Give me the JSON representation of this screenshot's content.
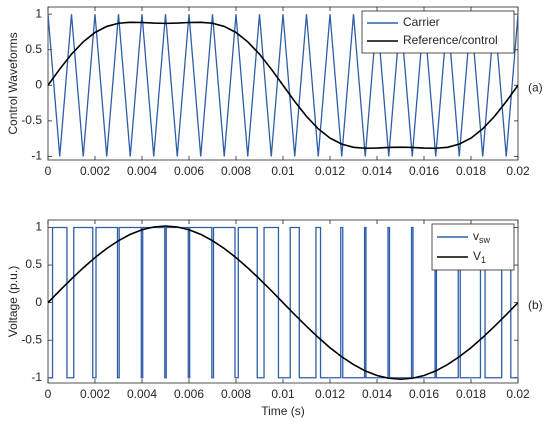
{
  "chart_data": [
    {
      "type": "line",
      "ylabel": "Control Waveforms",
      "annotation": "(a)",
      "x": [
        0,
        0.0005,
        0.001,
        0.0015,
        0.002,
        0.0025,
        0.003,
        0.0035,
        0.004,
        0.0045,
        0.005,
        0.0055,
        0.006,
        0.0065,
        0.007,
        0.0075,
        0.008,
        0.0085,
        0.009,
        0.0095,
        0.01,
        0.0105,
        0.011,
        0.0115,
        0.012,
        0.0125,
        0.013,
        0.0135,
        0.014,
        0.0145,
        0.015,
        0.0155,
        0.016,
        0.0165,
        0.017,
        0.0175,
        0.018,
        0.0185,
        0.019,
        0.0195,
        0.02
      ],
      "series": [
        {
          "name": "Carrier",
          "color": "#2f5ea8",
          "values": [
            1,
            -1,
            1,
            -1,
            1,
            -1,
            1,
            -1,
            1,
            -1,
            1,
            -1,
            1,
            -1,
            1,
            -1,
            1,
            -1,
            1,
            -1,
            1,
            -1,
            1,
            -1,
            1,
            -1,
            1,
            -1,
            1,
            -1,
            1,
            -1,
            1,
            -1,
            1,
            -1,
            1,
            -1,
            1,
            -1,
            1
          ]
        },
        {
          "name": "Reference/control",
          "color": "#000000",
          "values": [
            0,
            0.228,
            0.437,
            0.611,
            0.742,
            0.827,
            0.872,
            0.885,
            0.882,
            0.874,
            0.87,
            0.874,
            0.882,
            0.885,
            0.872,
            0.827,
            0.742,
            0.611,
            0.437,
            0.228,
            0,
            -0.228,
            -0.437,
            -0.611,
            -0.742,
            -0.827,
            -0.872,
            -0.885,
            -0.882,
            -0.874,
            -0.87,
            -0.874,
            -0.882,
            -0.885,
            -0.872,
            -0.827,
            -0.742,
            -0.611,
            -0.437,
            -0.228,
            0
          ]
        }
      ],
      "xlim": [
        0,
        0.02
      ],
      "xticks": [
        0,
        0.002,
        0.004,
        0.006,
        0.008,
        0.01,
        0.012,
        0.014,
        0.016,
        0.018,
        0.02
      ],
      "ylim": [
        -1.05,
        1.1
      ],
      "yticks": [
        -1,
        -0.5,
        0,
        0.5,
        1
      ],
      "legend": "upper right"
    },
    {
      "type": "line",
      "ylabel": "Voltage (p.u.)",
      "xlabel": "Time (s)",
      "annotation": "(b)",
      "x": [
        0,
        0.0005,
        0.001,
        0.0015,
        0.002,
        0.0025,
        0.003,
        0.0035,
        0.004,
        0.0045,
        0.005,
        0.0055,
        0.006,
        0.0065,
        0.007,
        0.0075,
        0.008,
        0.0085,
        0.009,
        0.0095,
        0.01,
        0.0105,
        0.011,
        0.0115,
        0.012,
        0.0125,
        0.013,
        0.0135,
        0.014,
        0.0145,
        0.015,
        0.0155,
        0.016,
        0.0165,
        0.017,
        0.0175,
        0.018,
        0.0185,
        0.019,
        0.0195,
        0.02
      ],
      "series": [
        {
          "name": "vsw",
          "color": "#2f5ea8",
          "x": [
            0,
            0.000193,
            0.000193,
            0.000807,
            0.000807,
            0.001097,
            0.001097,
            0.001903,
            0.001903,
            0.002043,
            0.002043,
            0.002957,
            0.002957,
            0.003029,
            0.003029,
            0.003971,
            0.003971,
            0.004031,
            0.004031,
            0.004969,
            0.004969,
            0.005031,
            0.005031,
            0.005969,
            0.005969,
            0.006029,
            0.006029,
            0.006971,
            0.006971,
            0.007043,
            0.007043,
            0.007957,
            0.007957,
            0.008097,
            0.008097,
            0.008903,
            0.008903,
            0.009193,
            0.009193,
            0.009807,
            0.009807,
            0.010307,
            0.010307,
            0.010693,
            0.010693,
            0.011403,
            0.011403,
            0.011597,
            0.011597,
            0.012457,
            0.012457,
            0.012543,
            0.012543,
            0.013471,
            0.013471,
            0.013529,
            0.013529,
            0.014469,
            0.014469,
            0.014532,
            0.014532,
            0.015469,
            0.015469,
            0.015532,
            0.015532,
            0.016471,
            0.016471,
            0.016529,
            0.016529,
            0.017457,
            0.017457,
            0.017543,
            0.017543,
            0.018403,
            0.018403,
            0.018597,
            0.018597,
            0.019307,
            0.019307,
            0.019693,
            0.019693,
            0.02
          ],
          "values": [
            -1,
            -1,
            1,
            1,
            -1,
            -1,
            1,
            1,
            -1,
            -1,
            1,
            1,
            -1,
            -1,
            1,
            1,
            -1,
            -1,
            1,
            1,
            -1,
            -1,
            1,
            1,
            -1,
            -1,
            1,
            1,
            -1,
            -1,
            1,
            1,
            -1,
            -1,
            1,
            1,
            -1,
            -1,
            1,
            1,
            -1,
            -1,
            1,
            1,
            -1,
            -1,
            1,
            1,
            -1,
            -1,
            1,
            1,
            -1,
            -1,
            1,
            1,
            -1,
            -1,
            1,
            1,
            -1,
            -1,
            1,
            1,
            -1,
            -1,
            1,
            1,
            -1,
            -1,
            1,
            1,
            -1,
            -1,
            1,
            1,
            -1,
            -1,
            1,
            1,
            -1,
            -1
          ]
        },
        {
          "name": "V1",
          "color": "#000000",
          "values": [
            0,
            0.16,
            0.315,
            0.463,
            0.6,
            0.721,
            0.825,
            0.909,
            0.97,
            1.007,
            1.02,
            1.007,
            0.97,
            0.909,
            0.825,
            0.721,
            0.6,
            0.463,
            0.315,
            0.16,
            0,
            -0.16,
            -0.315,
            -0.463,
            -0.6,
            -0.721,
            -0.825,
            -0.909,
            -0.97,
            -1.007,
            -1.02,
            -1.007,
            -0.97,
            -0.909,
            -0.825,
            -0.721,
            -0.6,
            -0.463,
            -0.315,
            -0.16,
            0
          ]
        }
      ],
      "xlim": [
        0,
        0.02
      ],
      "xticks": [
        0,
        0.002,
        0.004,
        0.006,
        0.008,
        0.01,
        0.012,
        0.014,
        0.016,
        0.018,
        0.02
      ],
      "ylim": [
        -1.07,
        1.1
      ],
      "yticks": [
        -1,
        -0.5,
        0,
        0.5,
        1
      ],
      "legend": "upper right"
    }
  ]
}
